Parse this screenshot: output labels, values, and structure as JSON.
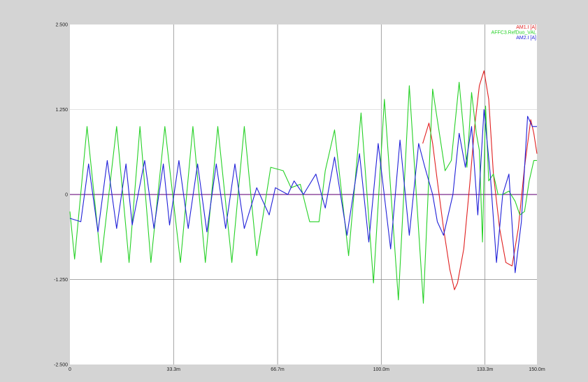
{
  "chart_data": {
    "type": "line",
    "title": "",
    "xlabel": "",
    "ylabel": "",
    "xlim": [
      0,
      0.15
    ],
    "ylim": [
      -2.5,
      2.5
    ],
    "x_ticks": [
      {
        "value": 0,
        "label": "0"
      },
      {
        "value": 0.0333,
        "label": "33.3m"
      },
      {
        "value": 0.0667,
        "label": "66.7m"
      },
      {
        "value": 0.1,
        "label": "100.0m"
      },
      {
        "value": 0.1333,
        "label": "133.3m"
      },
      {
        "value": 0.15,
        "label": "150.0m"
      }
    ],
    "y_ticks": [
      {
        "value": 2.5,
        "label": "2.500"
      },
      {
        "value": 1.25,
        "label": "1.250"
      },
      {
        "value": 0,
        "label": "0"
      },
      {
        "value": -1.25,
        "label": "-1.250"
      },
      {
        "value": -2.5,
        "label": "-2.500"
      }
    ],
    "grid": true,
    "legend_position": "top-right",
    "zero_line_color": "#7a2a8c",
    "series": [
      {
        "name": "AM1.I [A]",
        "color": "#e02020",
        "x": [
          0.1133,
          0.1153,
          0.1165,
          0.118,
          0.12,
          0.122,
          0.1235,
          0.1245,
          0.1265,
          0.1285,
          0.13,
          0.1315,
          0.133,
          0.1345,
          0.136,
          0.138,
          0.14,
          0.142,
          0.144,
          0.146,
          0.148,
          0.149,
          0.15
        ],
        "values": [
          0.75,
          1.05,
          0.75,
          0.2,
          -0.5,
          -1.1,
          -1.4,
          -1.3,
          -0.8,
          0.2,
          1.0,
          1.6,
          1.82,
          1.4,
          0.3,
          -0.5,
          -1.0,
          -1.05,
          -0.5,
          0.4,
          1.1,
          0.9,
          0.6
        ]
      },
      {
        "name": "AFFC3.RefDuo_VAL",
        "color": "#26d126",
        "x": [
          0.0,
          0.0015,
          0.0055,
          0.01,
          0.015,
          0.019,
          0.0225,
          0.026,
          0.0305,
          0.0355,
          0.0395,
          0.0435,
          0.0475,
          0.052,
          0.056,
          0.06,
          0.0645,
          0.0685,
          0.071,
          0.074,
          0.077,
          0.08,
          0.082,
          0.085,
          0.0895,
          0.0935,
          0.0975,
          0.101,
          0.1055,
          0.109,
          0.1135,
          0.1165,
          0.1205,
          0.1225,
          0.125,
          0.1275,
          0.129,
          0.1305,
          0.1315,
          0.1325,
          0.1335,
          0.1345,
          0.136,
          0.1375,
          0.139,
          0.141,
          0.143,
          0.1445,
          0.146,
          0.1475,
          0.149,
          0.15
        ],
        "values": [
          -0.25,
          -0.95,
          1.0,
          -1.0,
          1.0,
          -1.0,
          1.0,
          -1.0,
          1.0,
          -1.0,
          1.0,
          -1.0,
          1.0,
          -1.0,
          1.0,
          -0.9,
          0.4,
          0.35,
          0.1,
          0.15,
          -0.4,
          -0.4,
          0.35,
          0.95,
          -0.9,
          1.2,
          -1.3,
          1.4,
          -1.55,
          1.6,
          -1.6,
          1.55,
          0.35,
          0.5,
          1.65,
          0.4,
          1.5,
          0.9,
          0.65,
          -0.7,
          1.3,
          0.2,
          0.3,
          0.0,
          0.0,
          0.05,
          -0.1,
          -0.3,
          -0.25,
          0.2,
          0.5,
          0.5
        ]
      },
      {
        "name": "AM2.I [A]",
        "color": "#2020d8",
        "x": [
          0.0,
          0.0035,
          0.006,
          0.009,
          0.012,
          0.015,
          0.018,
          0.02,
          0.024,
          0.027,
          0.03,
          0.032,
          0.035,
          0.038,
          0.041,
          0.044,
          0.047,
          0.05,
          0.053,
          0.056,
          0.06,
          0.064,
          0.066,
          0.07,
          0.072,
          0.075,
          0.079,
          0.082,
          0.085,
          0.089,
          0.093,
          0.096,
          0.099,
          0.103,
          0.106,
          0.109,
          0.112,
          0.114,
          0.1165,
          0.118,
          0.12,
          0.123,
          0.125,
          0.127,
          0.129,
          0.131,
          0.133,
          0.135,
          0.137,
          0.139,
          0.141,
          0.143,
          0.145,
          0.147,
          0.1485,
          0.15
        ],
        "values": [
          -0.35,
          -0.4,
          0.45,
          -0.55,
          0.5,
          -0.5,
          0.45,
          -0.45,
          0.5,
          -0.5,
          0.45,
          -0.45,
          0.5,
          -0.5,
          0.45,
          -0.55,
          0.45,
          -0.5,
          0.45,
          -0.5,
          0.1,
          -0.3,
          0.1,
          0.0,
          0.2,
          0.0,
          0.3,
          -0.2,
          0.55,
          -0.6,
          0.6,
          -0.7,
          0.75,
          -0.8,
          0.8,
          -0.6,
          0.75,
          0.4,
          0.0,
          -0.4,
          -0.6,
          0.0,
          0.9,
          0.4,
          1.0,
          -0.3,
          1.25,
          0.3,
          -1.0,
          0.0,
          0.3,
          -1.15,
          -0.4,
          1.15,
          1.0,
          1.0
        ]
      }
    ]
  }
}
